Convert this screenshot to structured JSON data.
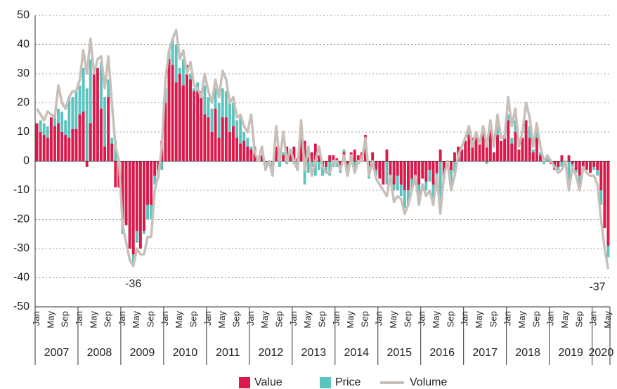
{
  "chart_data": {
    "type": "bar_line",
    "categories": [
      "Jan",
      null,
      null,
      null,
      "May",
      null,
      null,
      null,
      "Sep",
      null,
      null,
      null,
      "Jan",
      null,
      null,
      null,
      "May",
      null,
      null,
      null,
      "Sep",
      null,
      null,
      null,
      "Jan",
      null,
      null,
      null,
      "May",
      null,
      null,
      null,
      "Sep",
      null,
      null,
      null,
      "Jan",
      null,
      null,
      null,
      "May",
      null,
      null,
      null,
      "Sep",
      null,
      null,
      null,
      "Jan",
      null,
      null,
      null,
      "May",
      null,
      null,
      null,
      "Sep",
      null,
      null,
      null,
      "Jan",
      null,
      null,
      null,
      "May",
      null,
      null,
      null,
      "Sep",
      null,
      null,
      null,
      "Jan",
      null,
      null,
      null,
      "May",
      null,
      null,
      null,
      "Sep",
      null,
      null,
      null,
      "Jan",
      null,
      null,
      null,
      "May",
      null,
      null,
      null,
      "Sep",
      null,
      null,
      null,
      "Jan",
      null,
      null,
      null,
      "May",
      null,
      null,
      null,
      "Sep",
      null,
      null,
      null,
      "Jan",
      null,
      null,
      null,
      "May",
      null,
      null,
      null,
      "Sep",
      null,
      null,
      null,
      "Jan",
      null,
      null,
      null,
      "May",
      null,
      null,
      null,
      "Sep",
      null,
      null,
      null,
      "Jan",
      null,
      null,
      null,
      "May",
      null,
      null,
      null,
      "Sep",
      null,
      null,
      null,
      "Jan",
      null,
      null,
      null,
      "May",
      null,
      null,
      null,
      "Sep",
      null,
      null,
      null,
      "Jan",
      null,
      null,
      null,
      "May"
    ],
    "years": [
      "2007",
      "2008",
      "2009",
      "2010",
      "2011",
      "2012",
      "2013",
      "2014",
      "2015",
      "2016",
      "2017",
      "2018",
      "2019",
      "2020"
    ],
    "series": [
      {
        "name": "Value",
        "color": "#e0174a",
        "kind": "bar",
        "values": [
          13,
          10,
          9,
          8,
          15,
          12,
          13,
          10,
          9,
          8,
          11,
          11,
          16,
          17,
          -2,
          13,
          30,
          32,
          18,
          5,
          22,
          6,
          -9,
          -9,
          -20,
          -22,
          -30,
          -32,
          -24,
          -30,
          -24,
          -15,
          -15,
          -5,
          -3,
          7,
          20,
          35,
          33,
          27,
          30,
          26,
          33,
          28,
          24,
          24,
          24,
          16,
          15,
          10,
          18,
          8,
          15,
          15,
          10,
          12,
          8,
          6,
          7,
          5,
          4,
          5,
          0,
          2,
          0,
          0,
          0,
          5,
          3,
          2,
          5,
          3,
          5,
          1,
          11,
          7,
          2,
          3,
          6,
          2,
          -2,
          -2,
          2,
          2,
          1,
          -2,
          3,
          -1,
          3,
          4,
          2,
          3,
          9,
          -2,
          3,
          -3,
          -6,
          -8,
          4,
          -6,
          -8,
          -5,
          -8,
          -10,
          -10,
          -6,
          -6,
          -8,
          -6,
          -7,
          -3,
          -8,
          -4,
          4,
          -6,
          -2,
          -3,
          3,
          5,
          4,
          7,
          9,
          8,
          9,
          6,
          10,
          6,
          11,
          3,
          9,
          7,
          9,
          14,
          6,
          10,
          4,
          8,
          14,
          8,
          3,
          8,
          2,
          1,
          0,
          -1,
          -3,
          -2,
          2,
          -1,
          2,
          -1,
          -3,
          -5,
          -2,
          -3,
          -4,
          -2,
          -3,
          -10,
          -23,
          -29
        ]
      },
      {
        "name": "Price",
        "color": "#5bc4bf",
        "kind": "bar",
        "values": [
          12,
          14,
          13,
          12,
          15,
          16,
          18,
          17,
          14,
          22,
          22,
          24,
          26,
          32,
          25,
          35,
          28,
          30,
          34,
          22,
          28,
          8,
          7,
          -1,
          -25,
          -18,
          -30,
          -35,
          -28,
          -30,
          -25,
          -20,
          -20,
          -8,
          -6,
          -3,
          25,
          38,
          42,
          40,
          32,
          35,
          28,
          30,
          25,
          27,
          22,
          26,
          22,
          18,
          25,
          20,
          25,
          24,
          20,
          20,
          14,
          15,
          10,
          8,
          5,
          3,
          0,
          1,
          -1,
          0,
          -2,
          2,
          -2,
          3,
          -1,
          1,
          -1,
          -3,
          1,
          -8,
          -4,
          -2,
          -5,
          -3,
          -5,
          -4,
          -5,
          -2,
          -2,
          -4,
          4,
          -4,
          2,
          -3,
          -1,
          0,
          4,
          -6,
          -2,
          -5,
          -4,
          -6,
          -8,
          -5,
          -10,
          -10,
          -12,
          -16,
          -15,
          -10,
          -8,
          -12,
          -6,
          -10,
          -7,
          -14,
          -5,
          -16,
          -5,
          -2,
          -8,
          -4,
          1,
          3,
          6,
          10,
          4,
          9,
          6,
          10,
          -1,
          8,
          2,
          12,
          5,
          6,
          16,
          8,
          14,
          4,
          8,
          14,
          12,
          4,
          10,
          3,
          -1,
          1,
          0,
          -1,
          -3,
          -2,
          0,
          -8,
          -2,
          -4,
          -8,
          -2,
          -3,
          -3,
          -3,
          -5,
          -15,
          -23,
          -33
        ]
      },
      {
        "name": "Volume",
        "color": "#c8bfb8",
        "kind": "line",
        "values": [
          18,
          16,
          14,
          17,
          16,
          15,
          26,
          20,
          18,
          22,
          24,
          24,
          28,
          38,
          30,
          42,
          30,
          35,
          36,
          25,
          36,
          20,
          5,
          0,
          -22,
          -28,
          -34,
          -36,
          -30,
          -32,
          -32,
          -26,
          -26,
          -10,
          -5,
          5,
          28,
          38,
          42,
          45,
          35,
          38,
          30,
          34,
          26,
          25,
          22,
          30,
          24,
          20,
          28,
          22,
          31,
          28,
          20,
          22,
          15,
          16,
          12,
          10,
          16,
          3,
          0,
          5,
          -3,
          0,
          -5,
          12,
          0,
          10,
          0,
          4,
          0,
          -3,
          14,
          -3,
          5,
          -5,
          0,
          5,
          -2,
          -4,
          -4,
          0,
          0,
          -3,
          2,
          -5,
          2,
          -4,
          0,
          0,
          8,
          -5,
          0,
          -6,
          -8,
          -10,
          -12,
          -5,
          -14,
          -12,
          -13,
          -18,
          -15,
          -10,
          -5,
          -15,
          -8,
          -12,
          -10,
          -15,
          -5,
          -18,
          -5,
          0,
          -10,
          -5,
          2,
          5,
          8,
          12,
          5,
          10,
          6,
          12,
          5,
          14,
          5,
          16,
          8,
          8,
          22,
          12,
          18,
          5,
          10,
          20,
          15,
          5,
          13,
          5,
          0,
          2,
          0,
          -2,
          -4,
          -3,
          0,
          -10,
          -2,
          -5,
          -10,
          -2,
          -4,
          -5,
          -5,
          -8,
          -20,
          -30,
          -37
        ]
      }
    ],
    "annotations": [
      "-36",
      "-37"
    ],
    "ylim": [
      -50,
      50
    ],
    "yticks": [
      -50,
      -40,
      -30,
      -20,
      -10,
      0,
      10,
      20,
      30,
      40,
      50
    ],
    "grid": true
  }
}
